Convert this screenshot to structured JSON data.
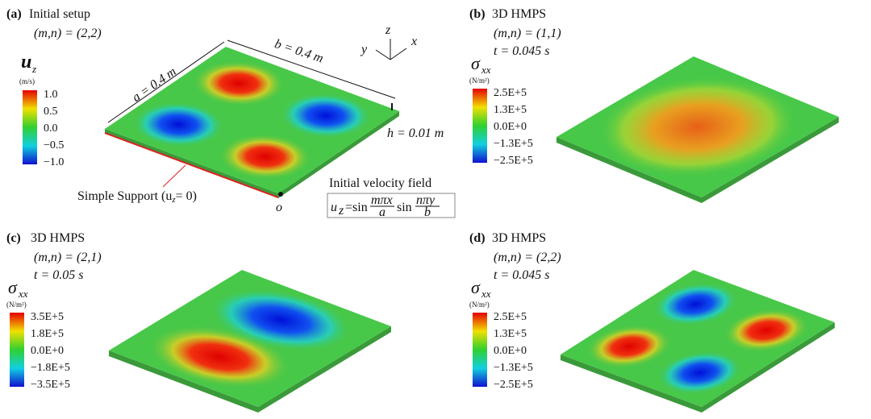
{
  "panels": [
    {
      "label": "(a)",
      "title": "Initial setup",
      "mode": "(m,n) = (2,2)",
      "quantity": "u",
      "quantity_sub": "z",
      "unit": "(m/s)",
      "ticks": [
        "1.0",
        "0.5",
        "0.0",
        "−0.5",
        "−1.0"
      ]
    },
    {
      "label": "(b)",
      "title": "3D HMPS",
      "mode": "(m,n) = (1,1)",
      "time": "t = 0.045 s",
      "quantity": "σ",
      "quantity_sub": "xx",
      "unit": "(N/m²)",
      "ticks": [
        "2.5E+5",
        "1.3E+5",
        "0.0E+0",
        "−1.3E+5",
        "−2.5E+5"
      ]
    },
    {
      "label": "(c)",
      "title": "3D HMPS",
      "mode": "(m,n) = (2,1)",
      "time": "t = 0.05 s",
      "quantity": "σ",
      "quantity_sub": "xx",
      "unit": "(N/m²)",
      "ticks": [
        "3.5E+5",
        "1.8E+5",
        "0.0E+0",
        "−1.8E+5",
        "−3.5E+5"
      ]
    },
    {
      "label": "(d)",
      "title": "3D HMPS",
      "mode": "(m,n) = (2,2)",
      "time": "t = 0.045 s",
      "quantity": "σ",
      "quantity_sub": "xx",
      "unit": "(N/m²)",
      "ticks": [
        "2.5E+5",
        "1.3E+5",
        "0.0E+0",
        "−1.3E+5",
        "−2.5E+5"
      ]
    }
  ],
  "setup": {
    "a": "a = 0.4 m",
    "b": "b = 0.4 m",
    "h": "h = 0.01 m",
    "axis_z": "z",
    "axis_y": "y",
    "axis_x": "x",
    "origin": "o",
    "support": "Simple Support (u",
    "support_sub": "z",
    "support_end": "= 0)",
    "velocity_title": "Initial velocity field",
    "formula": {
      "u": "u",
      "sub": "z",
      "eq": "=sin",
      "num1": "mπx",
      "den1": "a",
      "sin2": "sin",
      "num2": "nπy",
      "den2": "b"
    }
  }
}
